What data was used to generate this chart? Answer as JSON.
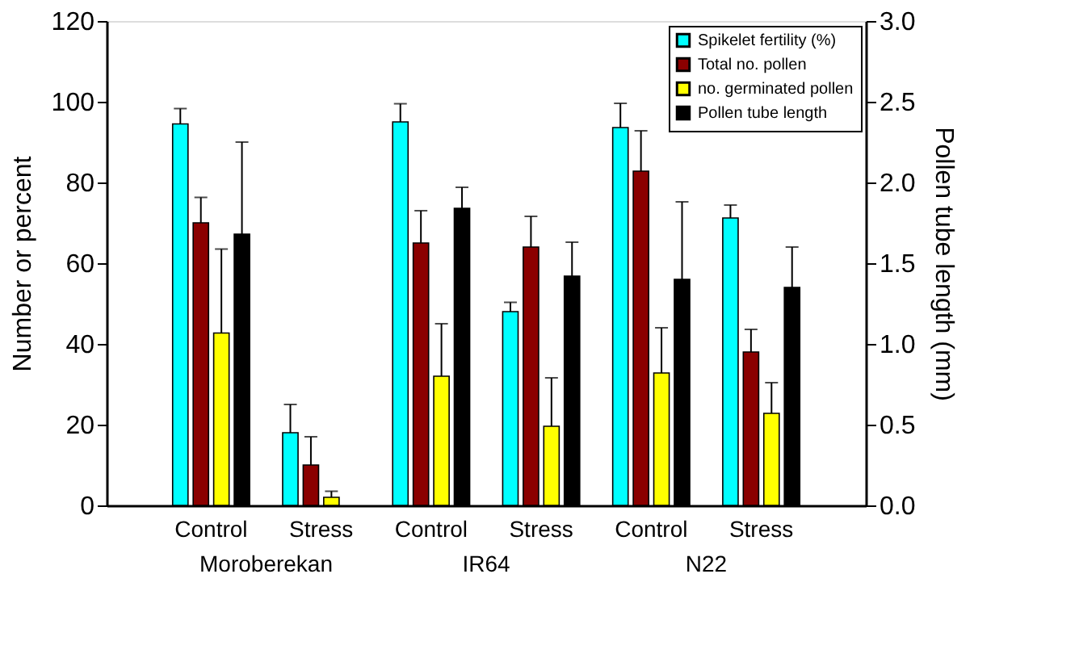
{
  "chart_data": {
    "type": "bar",
    "ylabel": "Number or percent",
    "y2label": "Pollen tube length (mm)",
    "categories": [
      "Control",
      "Stress",
      "Control",
      "Stress",
      "Control",
      "Stress"
    ],
    "annotations": [
      "Moroberekan",
      "IR64",
      "N22"
    ],
    "ylim": [
      0,
      120
    ],
    "yticks": [
      0,
      20,
      40,
      60,
      80,
      100,
      120
    ],
    "y2lim": [
      0,
      3
    ],
    "y2ticks": [
      {
        "value": 0,
        "label": "0.0"
      },
      {
        "value": 0.5,
        "label": "0.5"
      },
      {
        "value": 1,
        "label": "1.0"
      },
      {
        "value": 1.5,
        "label": "1.5"
      },
      {
        "value": 2,
        "label": "2.0"
      },
      {
        "value": 2.5,
        "label": "2.5"
      },
      {
        "value": 3,
        "label": "3.0"
      }
    ],
    "legend": "top right",
    "grid": false,
    "series": [
      {
        "name": "Spikelet fertility (%)",
        "color": "#00ffff",
        "values": [
          94.5,
          18,
          95,
          48,
          93.6,
          71.2
        ],
        "errors": [
          [
            94.5,
            98.3
          ],
          [
            18,
            25
          ],
          [
            95,
            99.5
          ],
          [
            48,
            50.3
          ],
          [
            93.6,
            99.6
          ],
          [
            71.2,
            74.4
          ]
        ]
      },
      {
        "name": "Total no. pollen",
        "color": "#8b0000",
        "values": [
          70,
          10,
          65,
          64,
          82.8,
          38
        ],
        "errors": [
          [
            70,
            76.3
          ],
          [
            10,
            17
          ],
          [
            65,
            73
          ],
          [
            64,
            71.6
          ],
          [
            82.8,
            92.8
          ],
          [
            38,
            43.6
          ]
        ]
      },
      {
        "name": "no. germinated pollen",
        "color": "#ffff00",
        "values": [
          42.7,
          2,
          32,
          19.6,
          32.8,
          22.8
        ],
        "errors": [
          [
            42.7,
            63.5
          ],
          [
            2,
            3.5
          ],
          [
            32,
            45
          ],
          [
            19.6,
            31.6
          ],
          [
            32.8,
            44
          ],
          [
            22.8,
            30.4
          ]
        ]
      },
      {
        "name": "Pollen tube length",
        "color": "#000000",
        "axis": "y2",
        "values": [
          1.68,
          null,
          1.84,
          1.42,
          1.4,
          1.35
        ],
        "errors": [
          [
            1.68,
            2.25
          ],
          null,
          [
            1.84,
            1.97
          ],
          [
            1.42,
            1.63
          ],
          [
            1.4,
            1.88
          ],
          [
            1.35,
            1.6
          ]
        ]
      }
    ]
  }
}
